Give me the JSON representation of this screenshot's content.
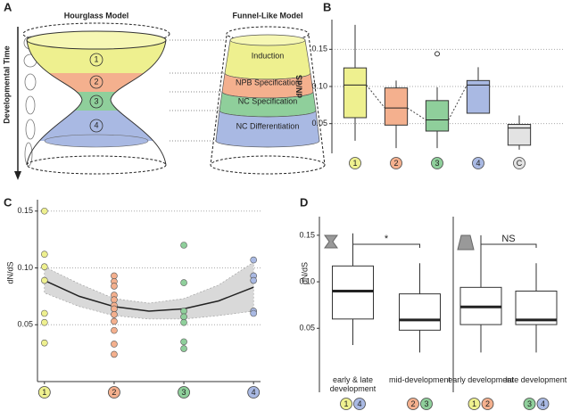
{
  "panel_a": {
    "label": "A",
    "hourglass_title": "Hourglass Model",
    "funnel_title": "Funnel-Like Model",
    "axis_label": "Developmental Time",
    "stages": [
      "1",
      "2",
      "3",
      "4"
    ],
    "funnel_layers": [
      "Induction",
      "NPB Specification",
      "NC Specification",
      "NC Differentiation"
    ]
  },
  "chart_data": [
    {
      "type": "box",
      "label": "B",
      "y_label": "dN/dS",
      "categories": [
        "1",
        "2",
        "3",
        "4",
        "C"
      ],
      "colors": [
        "#eef08f",
        "#f4b08e",
        "#8fcf9b",
        "#a9b9e3",
        "#e3e3e3"
      ],
      "boxes": [
        {
          "min": 0.027,
          "q1": 0.058,
          "median": 0.102,
          "q3": 0.125,
          "max": 0.183
        },
        {
          "min": 0.017,
          "q1": 0.048,
          "median": 0.071,
          "q3": 0.098,
          "max": 0.108
        },
        {
          "min": 0.017,
          "q1": 0.04,
          "median": 0.055,
          "q3": 0.081,
          "max": 0.099,
          "outliers": [
            0.144
          ]
        },
        {
          "min": 0.064,
          "q1": 0.064,
          "median": 0.102,
          "q3": 0.108,
          "max": 0.126
        },
        {
          "min": 0.015,
          "q1": 0.021,
          "median": 0.044,
          "q3": 0.049,
          "max": 0.061
        }
      ],
      "ylim": [
        0.01,
        0.19
      ],
      "yticks": [
        0.05,
        {
          "value": 0.1,
          "label": "0.10"
        },
        0.15
      ],
      "grid": true
    },
    {
      "type": "scatter",
      "label": "C",
      "y_label": "dN/dS",
      "xlim": [
        0.9,
        4.1
      ],
      "xticks": [
        1,
        2,
        3,
        4
      ],
      "tick_colors": [
        "#eef08f",
        "#f4b08e",
        "#8fcf9b",
        "#a9b9e3"
      ],
      "ylim": [
        0,
        0.16
      ],
      "yticks": [
        0.05,
        {
          "value": 0.1,
          "label": "0.10"
        },
        0.15
      ],
      "grid": true,
      "series": [
        {
          "color": "#eef08f",
          "x": [
            1,
            1,
            1,
            1,
            1,
            1,
            1
          ],
          "values": [
            0.15,
            0.112,
            0.101,
            0.089,
            0.06,
            0.052,
            0.034
          ]
        },
        {
          "color": "#f4b08e",
          "x": [
            2,
            2,
            2,
            2,
            2,
            2,
            2,
            2,
            2,
            2,
            2,
            2
          ],
          "values": [
            0.093,
            0.088,
            0.084,
            0.076,
            0.072,
            0.067,
            0.064,
            0.059,
            0.053,
            0.045,
            0.033,
            0.024
          ]
        },
        {
          "color": "#8fcf9b",
          "x": [
            3,
            3,
            3,
            3,
            3,
            3,
            3
          ],
          "values": [
            0.12,
            0.087,
            0.062,
            0.057,
            0.052,
            0.035,
            0.029
          ]
        },
        {
          "color": "#a9b9e3",
          "x": [
            4,
            4,
            4,
            4,
            4
          ],
          "values": [
            0.107,
            0.093,
            0.089,
            0.062,
            0.06
          ]
        }
      ],
      "fit": {
        "color": "#222222",
        "band_color": "#d9d9d9",
        "x": [
          1,
          1.5,
          2,
          2.5,
          3,
          3.5,
          4
        ],
        "values": [
          0.089,
          0.075,
          0.066,
          0.062,
          0.064,
          0.071,
          0.083
        ],
        "lower": [
          0.078,
          0.066,
          0.058,
          0.055,
          0.055,
          0.058,
          0.062
        ],
        "upper": [
          0.101,
          0.086,
          0.073,
          0.069,
          0.073,
          0.085,
          0.105
        ]
      }
    },
    {
      "type": "box_facets",
      "label": "D",
      "y_label": "dN/dS",
      "ylim": [
        0.01,
        0.17
      ],
      "yticks": [
        0.05,
        {
          "value": 0.1,
          "label": "0.10"
        },
        0.15
      ],
      "stage_colors": {
        "1": "#eef08f",
        "2": "#f4b08e",
        "3": "#8fcf9b",
        "4": "#a9b9e3"
      },
      "facets": [
        {
          "annotation": "*",
          "categories": [
            "early & late development",
            "mid-development"
          ],
          "groups": [
            [
              "1",
              "4"
            ],
            [
              "2",
              "3"
            ]
          ],
          "boxes": [
            {
              "min": 0.032,
              "q1": 0.06,
              "median": 0.09,
              "q3": 0.117,
              "max": 0.152
            },
            {
              "min": 0.024,
              "q1": 0.048,
              "median": 0.059,
              "q3": 0.087,
              "max": 0.12
            }
          ]
        },
        {
          "annotation": "NS",
          "categories": [
            "early development",
            "late development"
          ],
          "groups": [
            [
              "1",
              "2"
            ],
            [
              "3",
              "4"
            ]
          ],
          "boxes": [
            {
              "min": 0.024,
              "q1": 0.054,
              "median": 0.073,
              "q3": 0.094,
              "max": 0.15
            },
            {
              "min": 0.024,
              "q1": 0.054,
              "median": 0.059,
              "q3": 0.09,
              "max": 0.12
            }
          ]
        }
      ]
    }
  ]
}
